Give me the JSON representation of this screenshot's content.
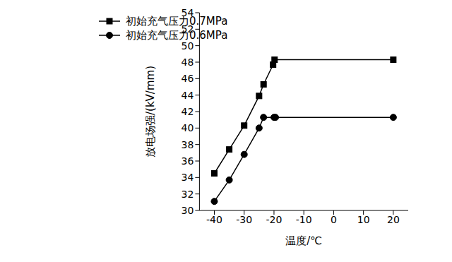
{
  "chart_data": {
    "type": "line",
    "x_label": "温度/℃",
    "y_label": "放电场强/(kV/mm)",
    "xlim": [
      -45,
      25
    ],
    "xticks": [
      -40,
      -30,
      -20,
      -10,
      0,
      10,
      20
    ],
    "ylim": [
      30,
      54
    ],
    "yticks": [
      30,
      32,
      34,
      36,
      38,
      40,
      42,
      44,
      46,
      48,
      50,
      52,
      54
    ],
    "grid": false,
    "legend": "top-left",
    "series": [
      {
        "name": "初始充气压力0.7MPa",
        "color": "#000000",
        "marker": "square",
        "x": [
          -40,
          -35,
          -30,
          -25,
          -23.5,
          -20.3,
          -19.8,
          20
        ],
        "values": [
          34.5,
          37.4,
          40.3,
          43.9,
          45.3,
          47.7,
          48.3,
          48.3
        ]
      },
      {
        "name": "初始充气压力0.6MPa",
        "color": "#000000",
        "marker": "circle",
        "x": [
          -40,
          -35,
          -30,
          -25,
          -23.5,
          -20,
          -19.5,
          20
        ],
        "values": [
          31.1,
          33.7,
          36.8,
          40.0,
          41.3,
          41.3,
          41.3,
          41.3
        ]
      }
    ]
  }
}
